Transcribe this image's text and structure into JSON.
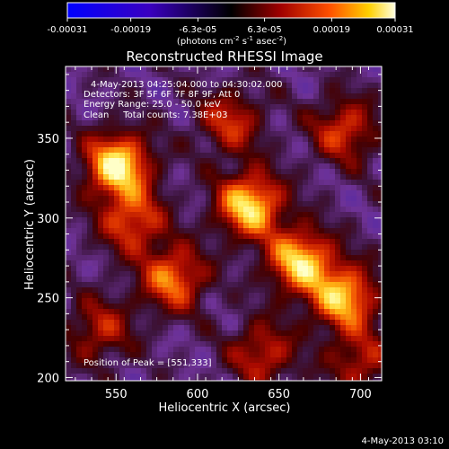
{
  "chart_data": {
    "type": "heatmap",
    "title": "Reconstructed RHESSI Image",
    "xlabel": "Heliocentric X (arcsec)",
    "ylabel": "Heliocentric Y (arcsec)",
    "xlim": [
      519,
      713
    ],
    "ylim": [
      198,
      395
    ],
    "xticks": [
      550,
      600,
      650,
      700
    ],
    "yticks": [
      200,
      250,
      300,
      350
    ],
    "colorbar": {
      "range": [
        -0.00031,
        0.00031
      ],
      "tick_values": [
        -0.00031,
        -0.00019,
        -6.3e-05,
        6.3e-05,
        0.00019,
        0.00031
      ],
      "tick_labels": [
        "-0.00031",
        "-0.00019",
        "-6.3e-05",
        "6.3e-05",
        "0.00019",
        "0.00031"
      ],
      "units": "(photons cm",
      "units_exp1": "-2",
      "units_mid": " s",
      "units_exp2": "-1",
      "units_mid2": " asec",
      "units_exp3": "-2",
      "units_end": ")"
    },
    "annotations": {
      "time_range": "4-May-2013 04:25:04.000 to 04:30:02.000",
      "detectors": "Detectors: 3F 5F 6F 7F 8F 9F, Att 0",
      "energy": "Energy Range: 25.0 - 50.0 keV",
      "clean": "Clean     Total counts: 7.38E+03",
      "peak": "Position of Peak = [551,333]"
    },
    "sources": [
      {
        "x": 551,
        "y": 333,
        "amp": 1.0
      },
      {
        "x": 632,
        "y": 308,
        "amp": 0.95
      },
      {
        "x": 663,
        "y": 273,
        "amp": 0.9
      },
      {
        "x": 690,
        "y": 250,
        "amp": 0.85
      },
      {
        "x": 585,
        "y": 262,
        "amp": 0.7
      },
      {
        "x": 560,
        "y": 298,
        "amp": 0.6
      },
      {
        "x": 620,
        "y": 360,
        "amp": 0.5
      },
      {
        "x": 690,
        "y": 355,
        "amp": 0.55
      },
      {
        "x": 540,
        "y": 230,
        "amp": 0.45
      },
      {
        "x": 640,
        "y": 215,
        "amp": 0.5
      },
      {
        "x": 700,
        "y": 210,
        "amp": 0.45
      }
    ]
  },
  "footer": {
    "timestamp": "4-May-2013 03:10"
  }
}
